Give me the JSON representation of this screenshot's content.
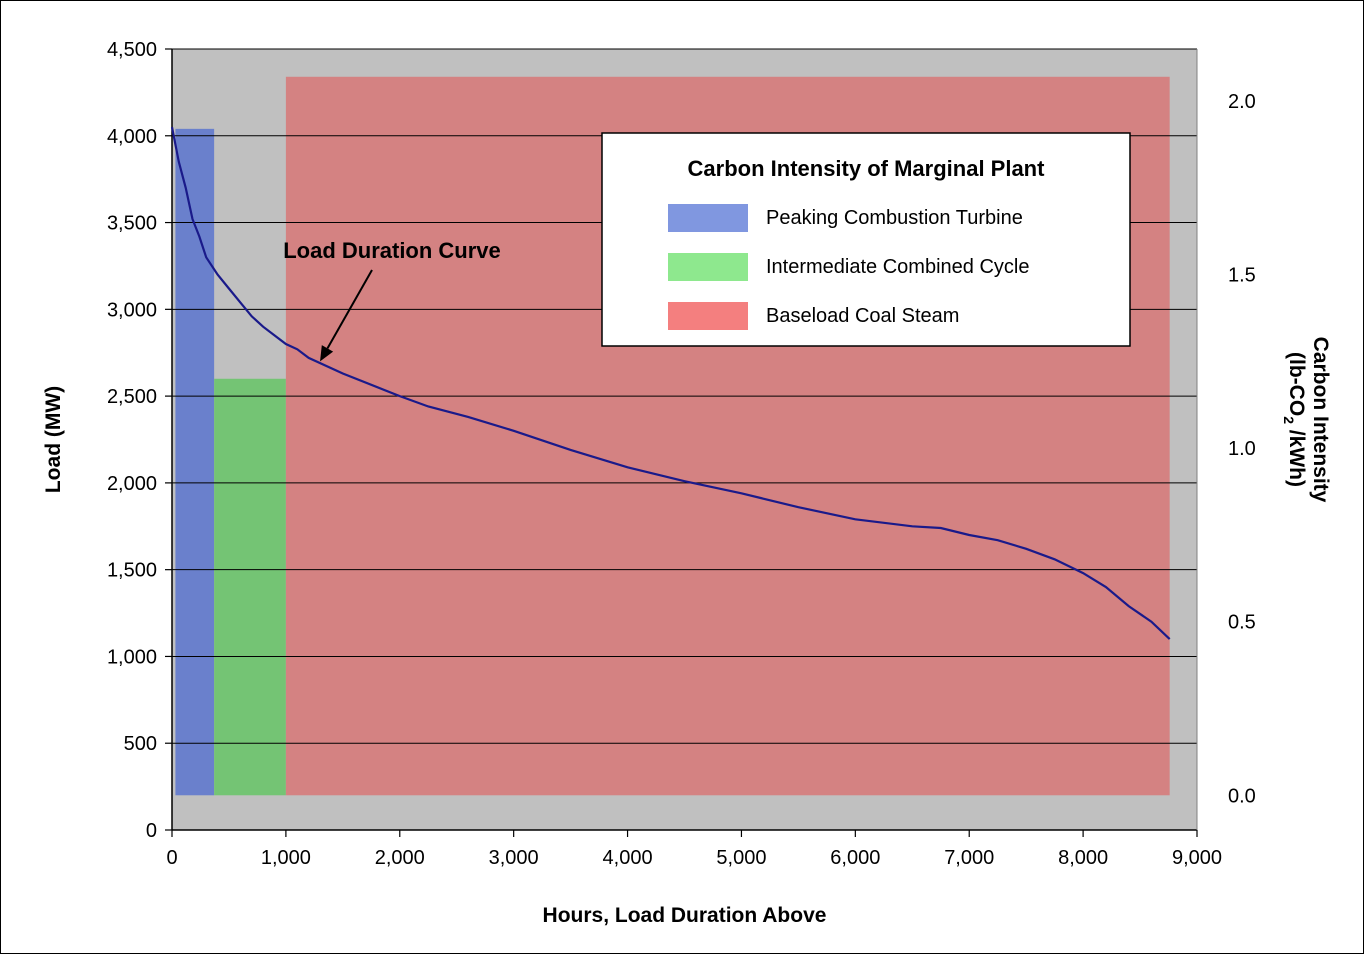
{
  "chart_data": {
    "type": "line",
    "xlabel": "Hours, Load Duration Above",
    "ylabel": "Load (MW)",
    "y2label_line1": "Carbon Intensity",
    "y2label_line2_pre": "(lb-CO",
    "y2label_line2_sub": "2",
    "y2label_line2_post": " /kWh)",
    "xlim": [
      0,
      9000
    ],
    "ylim": [
      0,
      4500
    ],
    "y2lim": [
      -0.1,
      2.15
    ],
    "x_ticks": [
      0,
      1000,
      2000,
      3000,
      4000,
      5000,
      6000,
      7000,
      8000,
      9000
    ],
    "x_tick_labels": [
      "0",
      "1,000",
      "2,000",
      "3,000",
      "4,000",
      "5,000",
      "6,000",
      "7,000",
      "8,000",
      "9,000"
    ],
    "y_ticks": [
      0,
      500,
      1000,
      1500,
      2000,
      2500,
      3000,
      3500,
      4000,
      4500
    ],
    "y_tick_labels": [
      "0",
      "500",
      "1,000",
      "1,500",
      "2,000",
      "2,500",
      "3,000",
      "3,500",
      "4,000",
      "4,500"
    ],
    "y2_ticks": [
      0.0,
      0.5,
      1.0,
      1.5,
      2.0
    ],
    "y2_tick_labels": [
      "0.0",
      "0.5",
      "1.0",
      "1.5",
      "2.0"
    ],
    "grid": true,
    "plot_background": "#c0c0c0",
    "bars": [
      {
        "name": "Peaking Combustion Turbine",
        "x_start": 30,
        "x_end": 370,
        "carbon_intensity": 1.92,
        "color": "#6a80cc"
      },
      {
        "name": "Intermediate Combined Cycle",
        "x_start": 370,
        "x_end": 1000,
        "carbon_intensity": 1.2,
        "color": "#74c474"
      },
      {
        "name": "Baseload Coal Steam",
        "x_start": 1000,
        "x_end": 8760,
        "carbon_intensity": 2.07,
        "color": "#d48282"
      }
    ],
    "series": [
      {
        "name": "Load Duration Curve",
        "color": "#1a1a8a",
        "x": [
          0,
          60,
          120,
          180,
          240,
          300,
          400,
          500,
          600,
          700,
          800,
          900,
          1000,
          1100,
          1200,
          1500,
          2000,
          2250,
          2600,
          3000,
          3500,
          4000,
          4500,
          5000,
          5500,
          6000,
          6500,
          6750,
          7000,
          7250,
          7500,
          7750,
          8000,
          8200,
          8400,
          8600,
          8760
        ],
        "y": [
          4050,
          3850,
          3700,
          3520,
          3420,
          3300,
          3200,
          3120,
          3040,
          2960,
          2900,
          2850,
          2800,
          2770,
          2720,
          2630,
          2500,
          2440,
          2380,
          2300,
          2190,
          2090,
          2010,
          1940,
          1860,
          1790,
          1750,
          1740,
          1700,
          1670,
          1620,
          1560,
          1480,
          1400,
          1290,
          1200,
          1100
        ]
      }
    ],
    "annotation": {
      "text": "Load Duration Curve",
      "arrow_to_x": 1300,
      "arrow_to_y": 2700
    },
    "legend": {
      "title": "Carbon Intensity of Marginal Plant",
      "placement": "top-right",
      "items": [
        {
          "label": "Peaking Combustion Turbine",
          "color": "#8097e0"
        },
        {
          "label": "Intermediate Combined Cycle",
          "color": "#8ee88e"
        },
        {
          "label": "Baseload Coal Steam",
          "color": "#f47f7f"
        }
      ]
    }
  }
}
